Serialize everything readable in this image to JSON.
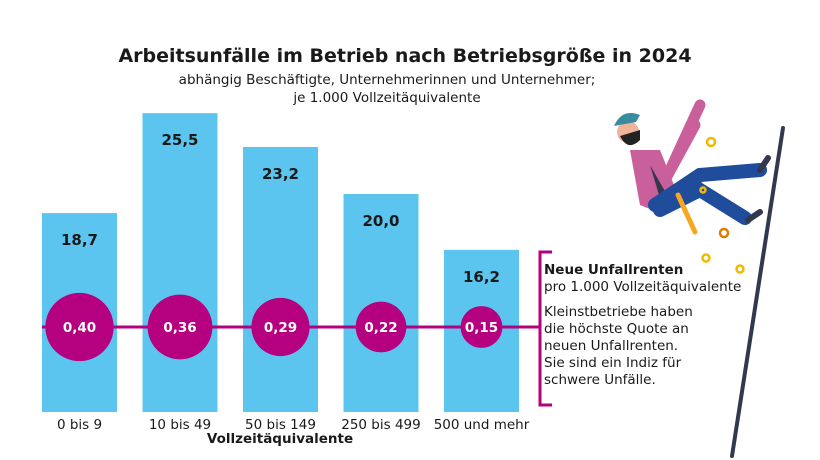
{
  "chart_data": {
    "type": "bar",
    "title": "Arbeitsunfälle im Betrieb nach Betriebsgröße in 2024",
    "subtitle": [
      "abhängig Beschäftigte, Unternehmerinnen und Unternehmer;",
      "je 1.000 Vollzeitäquivalente"
    ],
    "xlabel": "Vollzeitäquivalente",
    "categories": [
      "0 bis 9",
      "10 bis 49",
      "50 bis 149",
      "250 bis 499",
      "500 und mehr"
    ],
    "values": [
      18.7,
      25.5,
      23.2,
      20.0,
      16.2
    ],
    "value_labels": [
      "18,7",
      "25,5",
      "23,2",
      "20,0",
      "16,2"
    ],
    "overlay_series": {
      "name": "Neue Unfallrenten",
      "type": "bubble-line",
      "values": [
        0.4,
        0.36,
        0.29,
        0.22,
        0.15
      ],
      "value_labels": [
        "0,40",
        "0,36",
        "0,29",
        "0,22",
        "0,15"
      ]
    },
    "colors": {
      "bars": "#5bc5ef",
      "bubbles": "#b5007f"
    }
  },
  "annotation": {
    "title": "Neue Unfallrenten",
    "subtitle": "pro 1.000 Vollzeitäquivalente",
    "text": [
      "Kleinstbetriebe haben",
      "die höchste Quote an",
      "neuen Unfallrenten.",
      "Sie sind ein Indiz für",
      "schwere Unfälle."
    ]
  },
  "illustration": "worker-falling-from-ladder"
}
